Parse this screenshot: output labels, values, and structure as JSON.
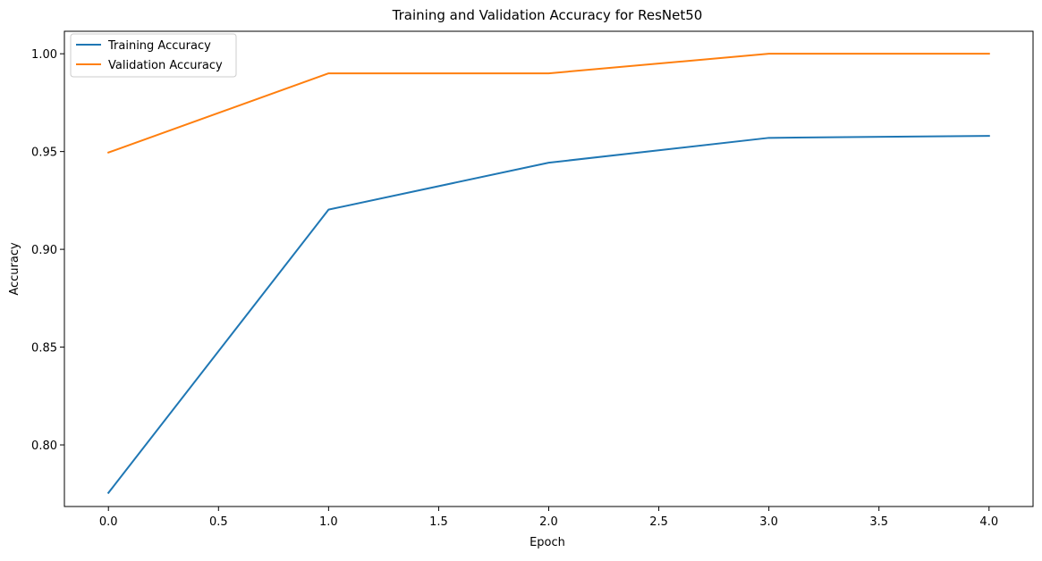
{
  "chart_data": {
    "type": "line",
    "title": "Training and Validation Accuracy for ResNet50",
    "xlabel": "Epoch",
    "ylabel": "Accuracy",
    "xlim": [
      -0.2,
      4.2
    ],
    "ylim": [
      0.7685,
      1.0115
    ],
    "xticks": [
      0.0,
      0.5,
      1.0,
      1.5,
      2.0,
      2.5,
      3.0,
      3.5,
      4.0
    ],
    "xtick_labels": [
      "0.0",
      "0.5",
      "1.0",
      "1.5",
      "2.0",
      "2.5",
      "3.0",
      "3.5",
      "4.0"
    ],
    "yticks": [
      0.8,
      0.85,
      0.9,
      0.95,
      1.0
    ],
    "ytick_labels": [
      "0.80",
      "0.85",
      "0.90",
      "0.95",
      "1.00"
    ],
    "grid": false,
    "legend_position": "top-left",
    "x": [
      0,
      1,
      2,
      3,
      4
    ],
    "series": [
      {
        "name": "Training Accuracy",
        "color": "#1f77b4",
        "values": [
          0.7755,
          0.9203,
          0.9443,
          0.957,
          0.958
        ]
      },
      {
        "name": "Validation Accuracy",
        "color": "#ff7f0e",
        "values": [
          0.9495,
          0.99,
          0.99,
          1.0,
          1.0
        ]
      }
    ]
  }
}
